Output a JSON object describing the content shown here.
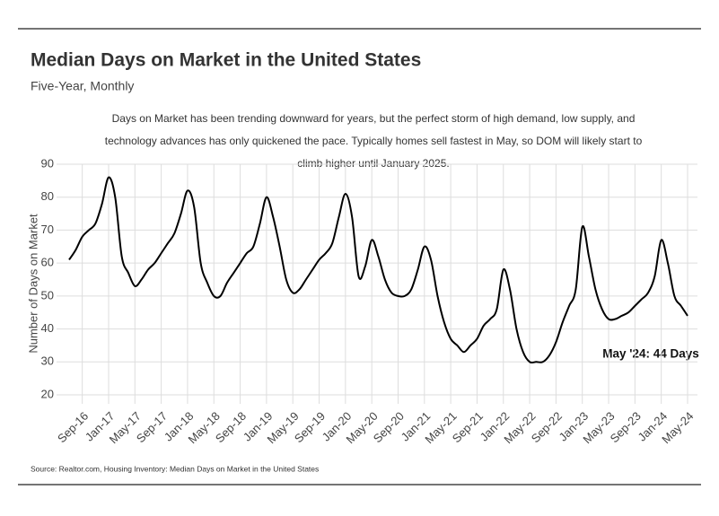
{
  "chart_data": {
    "type": "line",
    "title": "Median Days on Market in the United States",
    "subtitle": "Five-Year, Monthly",
    "description": [
      "Days on Market has been trending downward for years, but the perfect storm of high demand, low supply, and",
      "technology advances has only quickened the pace. Typically homes sell fastest in May, so DOM will likely start to",
      "climb higher until January 2025."
    ],
    "y_label": "Number of Days on Market",
    "annotation": "May '24: 44 Days",
    "source": "Source:  Realtor.com, Housing Inventory: Median Days on Market in the United States",
    "categories": [
      null,
      null,
      "Sep-16",
      null,
      null,
      null,
      "Jan-17",
      null,
      null,
      null,
      "May-17",
      null,
      null,
      null,
      "Sep-17",
      null,
      null,
      null,
      "Jan-18",
      null,
      null,
      null,
      "May-18",
      null,
      null,
      null,
      "Sep-18",
      null,
      null,
      null,
      "Jan-19",
      null,
      null,
      null,
      "May-19",
      null,
      null,
      null,
      "Sep-19",
      null,
      null,
      null,
      "Jan-20",
      null,
      null,
      null,
      "May-20",
      null,
      null,
      null,
      "Sep-20",
      null,
      null,
      null,
      "Jan-21",
      null,
      null,
      null,
      "May-21",
      null,
      null,
      null,
      "Sep-21",
      null,
      null,
      null,
      "Jan-22",
      null,
      null,
      null,
      "May-22",
      null,
      null,
      null,
      "Sep-22",
      null,
      null,
      null,
      "Jan-23",
      null,
      null,
      null,
      "May-23",
      null,
      null,
      null,
      "Sep-23",
      null,
      null,
      null,
      "Jan-24",
      null,
      null,
      null,
      "May-24"
    ],
    "values": [
      61,
      64,
      68,
      70,
      72,
      78,
      86,
      80,
      62,
      57,
      53,
      55,
      58,
      60,
      63,
      66,
      69,
      75,
      82,
      77,
      60,
      54,
      50,
      50,
      54,
      57,
      60,
      63,
      65,
      72,
      80,
      74,
      65,
      55,
      51,
      52,
      55,
      58,
      61,
      63,
      66,
      74,
      81,
      74,
      56,
      59,
      67,
      62,
      55,
      51,
      50,
      50,
      52,
      58,
      65,
      61,
      50,
      42,
      37,
      35,
      33,
      35,
      37,
      41,
      43,
      46,
      58,
      52,
      40,
      33,
      30,
      30,
      30,
      32,
      36,
      42,
      47,
      52,
      71,
      62,
      52,
      46,
      43,
      43,
      44,
      45,
      47,
      49,
      51,
      56,
      67,
      60,
      50,
      47,
      44
    ],
    "color": "#000000",
    "ylim": [
      20,
      90
    ],
    "yticks": [
      20,
      30,
      40,
      50,
      60,
      70,
      80,
      90
    ],
    "grid": true
  }
}
